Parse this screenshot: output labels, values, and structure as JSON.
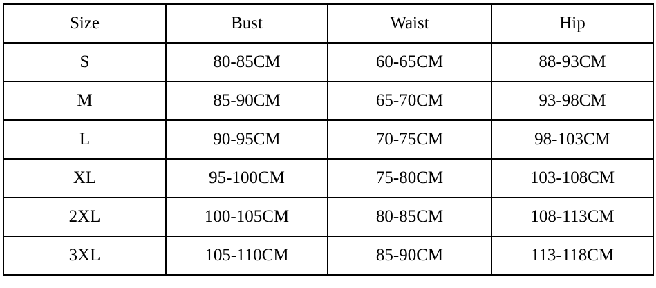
{
  "headers": [
    "Size",
    "Bust",
    "Waist",
    "Hip"
  ],
  "rows": [
    [
      "S",
      "80-85CM",
      "60-65CM",
      "88-93CM"
    ],
    [
      "M",
      "85-90CM",
      "65-70CM",
      "93-98CM"
    ],
    [
      "L",
      "90-95CM",
      "70-75CM",
      "98-103CM"
    ],
    [
      "XL",
      "95-100CM",
      "75-80CM",
      "103-108CM"
    ],
    [
      "2XL",
      "100-105CM",
      "80-85CM",
      "108-113CM"
    ],
    [
      "3XL",
      "105-110CM",
      "85-90CM",
      "113-118CM"
    ]
  ]
}
